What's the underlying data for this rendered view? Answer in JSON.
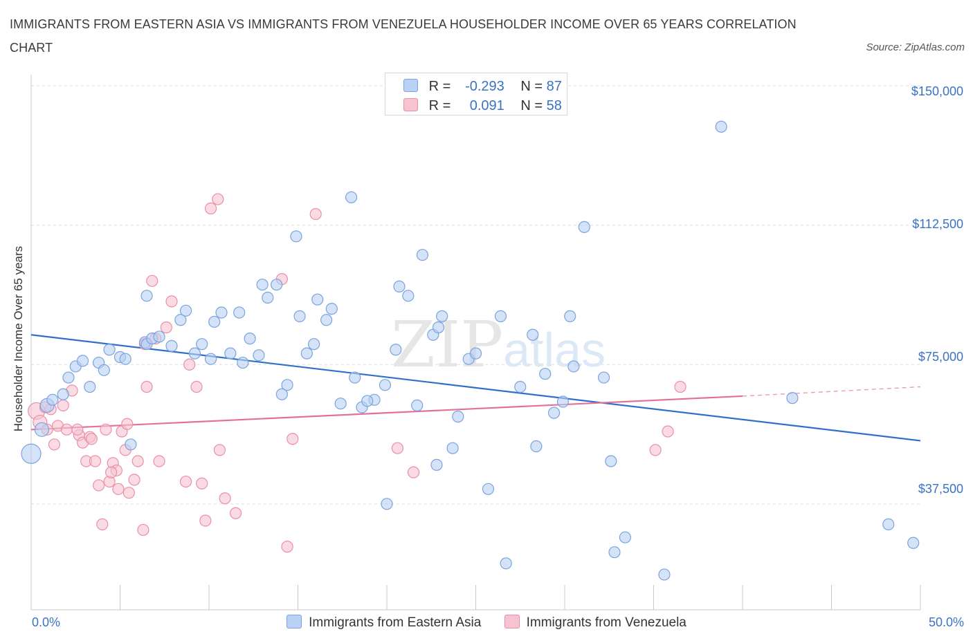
{
  "title": "IMMIGRANTS FROM EASTERN ASIA VS IMMIGRANTS FROM VENEZUELA HOUSEHOLDER INCOME OVER 65 YEARS CORRELATION CHART",
  "source": "Source: ZipAtlas.com",
  "watermark": "ZIPatlas",
  "colors": {
    "blue_fill": "#b9d1f4",
    "blue_stroke": "#7aa3dd",
    "blue_line": "#2f6fcb",
    "pink_fill": "#f7c3d1",
    "pink_stroke": "#e98fa9",
    "pink_line": "#e4709a",
    "axis_text": "#3a72c4",
    "grid": "#dddddd"
  },
  "legend_top": {
    "r_label": "R =",
    "n_label": "N =",
    "rows": [
      {
        "r": "-0.293",
        "n": "87"
      },
      {
        "r": "0.091",
        "n": "58"
      }
    ]
  },
  "chart_data": {
    "type": "scatter",
    "title": "IMMIGRANTS FROM EASTERN ASIA VS IMMIGRANTS FROM VENEZUELA HOUSEHOLDER INCOME OVER 65 YEARS CORRELATION CHART",
    "xlabel": "",
    "ylabel": "Householder Income Over 65 years",
    "xlim": [
      0,
      50
    ],
    "ylim": [
      9000,
      153000
    ],
    "x_tick_labels": [
      "0.0%",
      "50.0%"
    ],
    "y_ticks": [
      37500,
      75000,
      112500,
      150000
    ],
    "y_tick_labels": [
      "$37,500",
      "$75,000",
      "$112,500",
      "$150,000"
    ],
    "grid": true,
    "legend_position": "bottom",
    "series": [
      {
        "name": "Immigrants from Eastern Asia",
        "color": "#7aa3dd",
        "trend": {
          "x": [
            0,
            50
          ],
          "y": [
            83000,
            54500
          ]
        },
        "points": [
          [
            0.0,
            51000,
            14
          ],
          [
            0.6,
            57500,
            10
          ],
          [
            0.9,
            64000,
            10
          ],
          [
            1.2,
            65500,
            8
          ],
          [
            1.8,
            67000,
            8
          ],
          [
            2.1,
            71500,
            8
          ],
          [
            2.5,
            74500,
            8
          ],
          [
            2.9,
            76000,
            8
          ],
          [
            3.3,
            69000,
            8
          ],
          [
            3.8,
            75500,
            8
          ],
          [
            4.1,
            73500,
            8
          ],
          [
            4.4,
            79000,
            8
          ],
          [
            5.0,
            77000,
            8
          ],
          [
            5.3,
            76500,
            8
          ],
          [
            5.6,
            53500,
            8
          ],
          [
            6.4,
            81000,
            8
          ],
          [
            6.5,
            80500,
            8
          ],
          [
            6.5,
            93500,
            8
          ],
          [
            6.8,
            82000,
            8
          ],
          [
            7.2,
            82500,
            8
          ],
          [
            7.9,
            80000,
            8
          ],
          [
            8.4,
            87000,
            8
          ],
          [
            8.7,
            89500,
            8
          ],
          [
            9.2,
            78000,
            8
          ],
          [
            9.6,
            80500,
            8
          ],
          [
            10.1,
            76500,
            8
          ],
          [
            10.3,
            86500,
            8
          ],
          [
            10.7,
            89000,
            8
          ],
          [
            11.2,
            78000,
            8
          ],
          [
            11.7,
            89000,
            8
          ],
          [
            11.9,
            75500,
            8
          ],
          [
            12.3,
            82000,
            8
          ],
          [
            12.8,
            77500,
            8
          ],
          [
            13.0,
            96500,
            8
          ],
          [
            13.3,
            93000,
            8
          ],
          [
            14.1,
            67000,
            8
          ],
          [
            14.4,
            69500,
            8
          ],
          [
            14.9,
            109500,
            8
          ],
          [
            15.1,
            88000,
            8
          ],
          [
            15.5,
            78000,
            8
          ],
          [
            15.9,
            80500,
            8
          ],
          [
            16.1,
            92500,
            8
          ],
          [
            16.6,
            87000,
            8
          ],
          [
            16.9,
            90000,
            8
          ],
          [
            17.4,
            64500,
            8
          ],
          [
            18.0,
            120000,
            8
          ],
          [
            18.2,
            71500,
            8
          ],
          [
            18.6,
            63500,
            8
          ],
          [
            19.3,
            65500,
            8
          ],
          [
            19.9,
            69500,
            8
          ],
          [
            20.5,
            79000,
            8
          ],
          [
            20.7,
            96000,
            8
          ],
          [
            21.2,
            93500,
            8
          ],
          [
            21.7,
            64000,
            8
          ],
          [
            22.0,
            104500,
            8
          ],
          [
            22.6,
            83000,
            8
          ],
          [
            22.8,
            48000,
            8
          ],
          [
            22.9,
            85000,
            8
          ],
          [
            23.1,
            88000,
            8
          ],
          [
            23.7,
            52500,
            8
          ],
          [
            24.6,
            76500,
            8
          ],
          [
            25.0,
            78000,
            8
          ],
          [
            25.7,
            41500,
            8
          ],
          [
            26.4,
            88000,
            8
          ],
          [
            26.7,
            21500,
            8
          ],
          [
            27.5,
            69000,
            8
          ],
          [
            28.2,
            83000,
            8
          ],
          [
            28.4,
            53000,
            8
          ],
          [
            28.9,
            72500,
            8
          ],
          [
            29.4,
            62000,
            8
          ],
          [
            29.9,
            65000,
            8
          ],
          [
            30.3,
            88000,
            8
          ],
          [
            30.5,
            74500,
            8
          ],
          [
            31.1,
            112000,
            8
          ],
          [
            32.2,
            71500,
            8
          ],
          [
            32.6,
            49000,
            8
          ],
          [
            32.8,
            24500,
            8
          ],
          [
            33.4,
            28500,
            8
          ],
          [
            35.6,
            18500,
            8
          ],
          [
            38.8,
            139000,
            8
          ],
          [
            42.8,
            66000,
            8
          ],
          [
            48.2,
            32000,
            8
          ],
          [
            49.6,
            27000,
            8
          ],
          [
            20.0,
            37500,
            8
          ],
          [
            13.8,
            96500,
            8
          ],
          [
            24.0,
            61000,
            8
          ],
          [
            18.9,
            65200,
            8
          ]
        ]
      },
      {
        "name": "Immigrants from Venezuela",
        "color": "#e98fa9",
        "trend": {
          "x": [
            0,
            40
          ],
          "y": [
            57500,
            66500
          ]
        },
        "trend_dashed": {
          "x": [
            40,
            50
          ],
          "y": [
            66500,
            69000
          ]
        },
        "points": [
          [
            0.3,
            62500,
            12
          ],
          [
            0.5,
            59500,
            10
          ],
          [
            0.9,
            57500,
            8
          ],
          [
            1.1,
            63000,
            8
          ],
          [
            1.3,
            53500,
            8
          ],
          [
            1.5,
            58500,
            8
          ],
          [
            1.8,
            64000,
            8
          ],
          [
            2.0,
            57500,
            8
          ],
          [
            2.3,
            68000,
            8
          ],
          [
            2.7,
            56000,
            8
          ],
          [
            2.9,
            54000,
            8
          ],
          [
            3.1,
            49000,
            8
          ],
          [
            3.3,
            55500,
            8
          ],
          [
            3.6,
            49000,
            8
          ],
          [
            3.8,
            42500,
            8
          ],
          [
            4.0,
            32000,
            8
          ],
          [
            4.2,
            57500,
            8
          ],
          [
            4.4,
            43500,
            8
          ],
          [
            4.6,
            48500,
            8
          ],
          [
            4.8,
            46500,
            8
          ],
          [
            4.9,
            41500,
            8
          ],
          [
            5.1,
            57000,
            8
          ],
          [
            5.3,
            52000,
            8
          ],
          [
            5.4,
            59000,
            8
          ],
          [
            5.5,
            40500,
            8
          ],
          [
            5.8,
            44000,
            8
          ],
          [
            6.0,
            49000,
            8
          ],
          [
            6.3,
            30500,
            8
          ],
          [
            6.5,
            69000,
            8
          ],
          [
            6.8,
            97500,
            8
          ],
          [
            7.2,
            49000,
            8
          ],
          [
            7.6,
            85000,
            8
          ],
          [
            7.9,
            92000,
            8
          ],
          [
            8.7,
            43500,
            8
          ],
          [
            8.9,
            75000,
            8
          ],
          [
            9.3,
            69000,
            8
          ],
          [
            9.6,
            43000,
            8
          ],
          [
            9.8,
            33000,
            8
          ],
          [
            10.1,
            117000,
            8
          ],
          [
            10.5,
            119500,
            8
          ],
          [
            10.6,
            52000,
            8
          ],
          [
            10.9,
            39000,
            8
          ],
          [
            11.5,
            35000,
            8
          ],
          [
            14.1,
            98000,
            8
          ],
          [
            14.4,
            26000,
            8
          ],
          [
            14.7,
            55000,
            8
          ],
          [
            16.0,
            115500,
            8
          ],
          [
            20.6,
            52500,
            8
          ],
          [
            21.5,
            46000,
            8
          ],
          [
            35.1,
            52000,
            8
          ],
          [
            35.8,
            57000,
            8
          ],
          [
            36.5,
            69000,
            8
          ],
          [
            4.5,
            46000,
            8
          ],
          [
            7.0,
            82000,
            8
          ],
          [
            6.4,
            80500,
            8
          ],
          [
            3.4,
            55000,
            8
          ],
          [
            2.6,
            57500,
            8
          ],
          [
            0.8,
            63500,
            8
          ]
        ]
      }
    ]
  }
}
